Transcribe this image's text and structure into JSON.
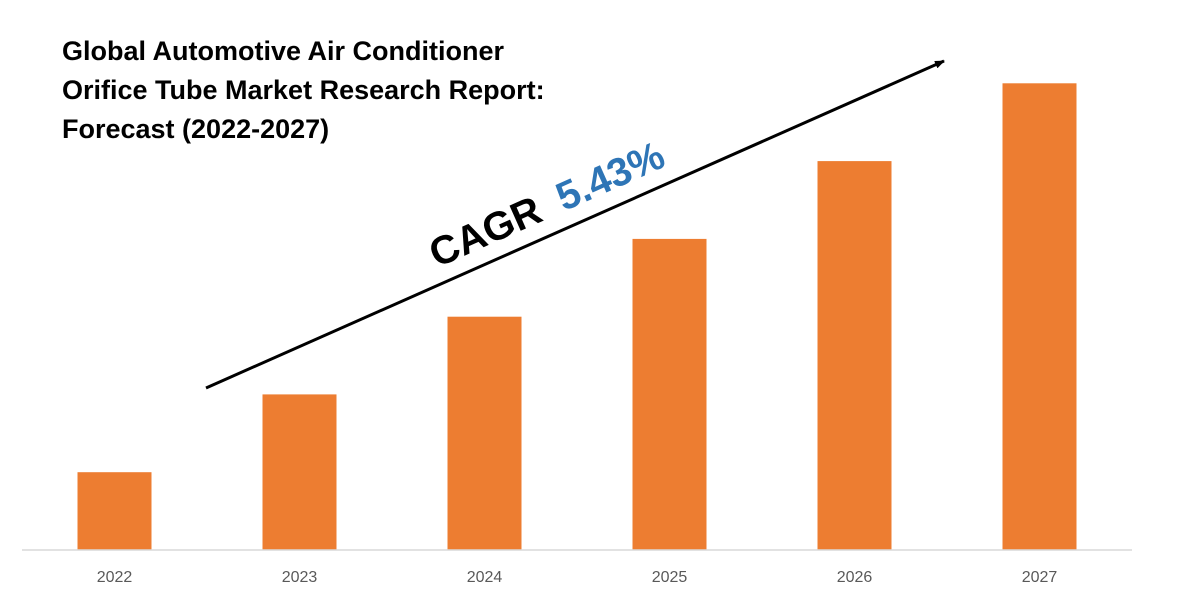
{
  "chart_data": {
    "type": "bar",
    "title_lines": [
      "Global Automotive Air Conditioner",
      "Orifice Tube Market Research Report:",
      "Forecast (2022-2027)"
    ],
    "categories": [
      "2022",
      "2023",
      "2024",
      "2025",
      "2026",
      "2027"
    ],
    "values": [
      1,
      2,
      3,
      4,
      5,
      6
    ],
    "ylim": [
      0,
      6.3
    ],
    "grid": false,
    "legend": "none",
    "annotation": {
      "label": "CAGR",
      "value": "5.43%"
    },
    "colors": {
      "bar": "#ED7D31",
      "cagr_label": "#000000",
      "cagr_value": "#2E75B6",
      "arrow": "#000000",
      "axis": "#D9D9D9"
    }
  }
}
